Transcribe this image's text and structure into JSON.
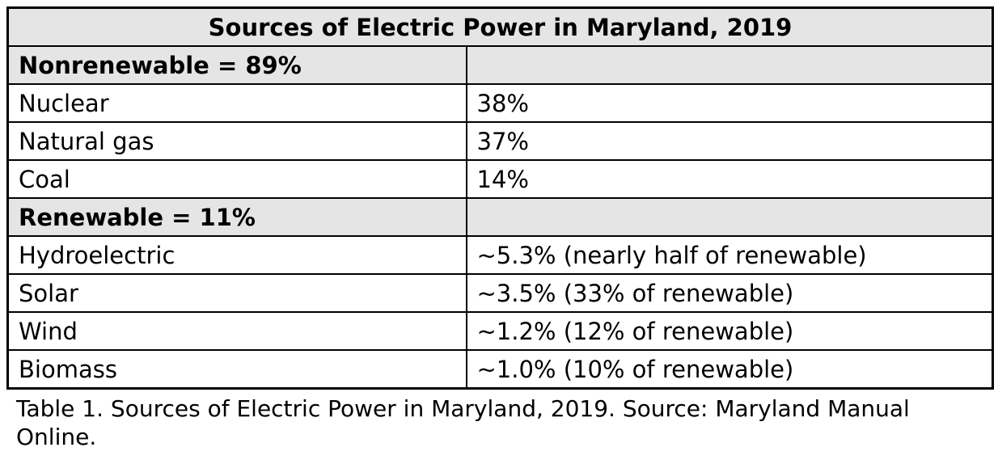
{
  "table": {
    "title": "Sources of Electric Power in Maryland, 2019",
    "sections": [
      {
        "header": "Nonrenewable = 89%",
        "rows": [
          {
            "source": "Nuclear",
            "value": "38%"
          },
          {
            "source": "Natural gas",
            "value": "37%"
          },
          {
            "source": "Coal",
            "value": "14%"
          }
        ]
      },
      {
        "header": "Renewable = 11%",
        "rows": [
          {
            "source": "Hydroelectric",
            "value": "~5.3% (nearly half of renewable)"
          },
          {
            "source": "Solar",
            "value": "~3.5% (33% of renewable)"
          },
          {
            "source": "Wind",
            "value": "~1.2% (12% of renewable)"
          },
          {
            "source": "Biomass",
            "value": "~1.0% (10% of renewable)"
          }
        ]
      }
    ]
  },
  "caption": "Table 1. Sources of Electric Power in Maryland, 2019. Source: Maryland Manual Online.",
  "colors": {
    "section_header_bg": "#e5e5e5",
    "border": "#000000",
    "text": "#000000",
    "background": "#ffffff"
  }
}
